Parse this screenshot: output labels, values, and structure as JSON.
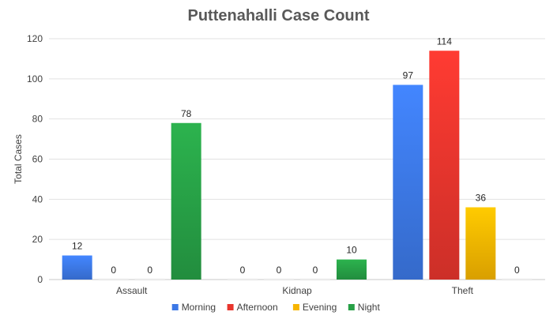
{
  "chart_data": {
    "type": "bar",
    "title": "Puttenahalli Case Count",
    "xlabel": "",
    "ylabel": "Total Cases",
    "categories": [
      "Assault",
      "Kidnap",
      "Theft"
    ],
    "series": [
      {
        "name": "Morning",
        "values": [
          12,
          0,
          97
        ],
        "color": "#3c78e6"
      },
      {
        "name": "Afternoon",
        "values": [
          0,
          0,
          114
        ],
        "color": "#e8352d"
      },
      {
        "name": "Evening",
        "values": [
          0,
          0,
          36
        ],
        "color": "#f7b500"
      },
      {
        "name": "Night",
        "values": [
          78,
          10,
          0
        ],
        "color": "#27a046"
      }
    ],
    "ylim": [
      0,
      120
    ],
    "yticks": [
      0,
      20,
      40,
      60,
      80,
      100,
      120
    ],
    "grid": true,
    "legend_position": "bottom"
  }
}
